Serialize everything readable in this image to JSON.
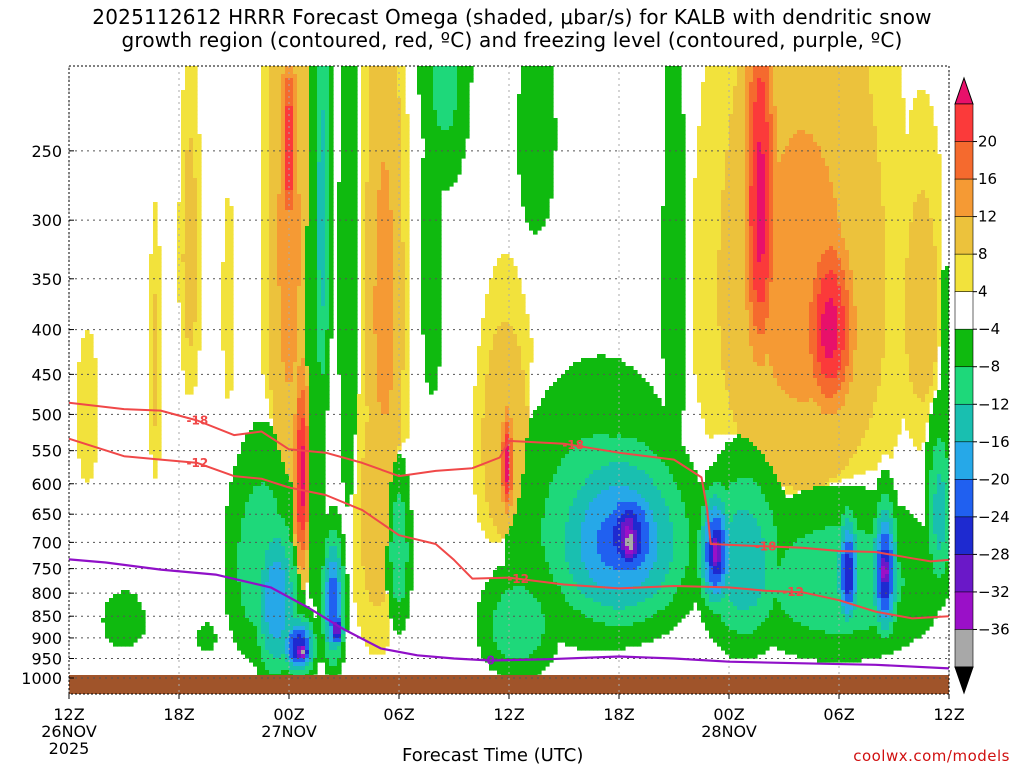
{
  "title": {
    "line1": "2025112612 HRRR Forecast Omega (shaded, μbar/s) for KALB with dendritic snow",
    "line2": "growth region (contoured, red, ºC) and freezing level (contoured, purple, ºC)"
  },
  "credit": "coolwx.com/models",
  "chart_data": {
    "type": "heatmap",
    "title": "2025112612 HRRR Forecast Omega (shaded, μbar/s) for KALB with dendritic snow growth region (contoured, red, ºC) and freezing level (contoured, purple, ºC)",
    "xlabel": "Forecast Time (UTC)",
    "ylabel": "",
    "x_ticks": [
      "12Z",
      "18Z",
      "00Z",
      "06Z",
      "12Z",
      "18Z",
      "00Z",
      "06Z",
      "12Z"
    ],
    "x_hours": [
      0,
      6,
      12,
      18,
      24,
      30,
      36,
      42,
      48
    ],
    "x_date_labels": [
      {
        "hour": 0,
        "lines": [
          "26NOV",
          "2025"
        ]
      },
      {
        "hour": 12,
        "lines": [
          "27NOV"
        ]
      },
      {
        "hour": 36,
        "lines": [
          "28NOV"
        ]
      }
    ],
    "y_ticks": [
      250,
      300,
      350,
      400,
      450,
      500,
      550,
      600,
      650,
      700,
      750,
      800,
      850,
      900,
      950,
      1000
    ],
    "y_scale": "log-pressure",
    "ylim": [
      1000,
      200
    ],
    "grid": true,
    "colorbar": {
      "labels": [
        "20",
        "16",
        "12",
        "8",
        "4",
        "−4",
        "−8",
        "−12",
        "−16",
        "−20",
        "−24",
        "−28",
        "−32",
        "−36"
      ],
      "colors": [
        "#e8106a",
        "#fb3a3a",
        "#f56a2e",
        "#f59a34",
        "#ecc23c",
        "#f2e23c",
        "#ffffff",
        "#0fba0f",
        "#1ed87a",
        "#19bfb0",
        "#26a8e8",
        "#2060f0",
        "#1e2ad0",
        "#6a18c8",
        "#9a10c8",
        "#a8a8a8",
        "#000000"
      ]
    },
    "omega_blobs": [
      {
        "t": 4.7,
        "p": 440,
        "dt": 0.35,
        "dp": 160,
        "v": 5
      },
      {
        "t": 6.6,
        "p": 330,
        "dt": 0.6,
        "dp": 140,
        "v": 6
      },
      {
        "t": 8.7,
        "p": 380,
        "dt": 0.4,
        "dp": 120,
        "v": 4
      },
      {
        "t": 1.0,
        "p": 500,
        "dt": 0.7,
        "dp": 120,
        "v": 4
      },
      {
        "t": 3.3,
        "p": 320,
        "dt": 0.4,
        "dp": 180,
        "v": -4
      },
      {
        "t": 12.0,
        "p": 320,
        "dt": 1.2,
        "dp": 300,
        "v": 10
      },
      {
        "t": 12.0,
        "p": 250,
        "dt": 0.35,
        "dp": 60,
        "v": 22
      },
      {
        "t": 12.7,
        "p": 590,
        "dt": 0.45,
        "dp": 160,
        "v": 22
      },
      {
        "t": 17.2,
        "p": 380,
        "dt": 1.1,
        "dp": 260,
        "v": 10
      },
      {
        "t": 16.8,
        "p": 650,
        "dt": 1.4,
        "dp": 280,
        "v": 6
      },
      {
        "t": 23.8,
        "p": 540,
        "dt": 1.5,
        "dp": 180,
        "v": 8
      },
      {
        "t": 23.9,
        "p": 570,
        "dt": 0.35,
        "dp": 80,
        "v": 22
      },
      {
        "t": 40.0,
        "p": 360,
        "dt": 4.8,
        "dp": 260,
        "v": 10
      },
      {
        "t": 37.7,
        "p": 290,
        "dt": 0.9,
        "dp": 150,
        "v": 22
      },
      {
        "t": 41.5,
        "p": 400,
        "dt": 1.4,
        "dp": 100,
        "v": 22
      },
      {
        "t": 39.5,
        "p": 650,
        "dt": 2.4,
        "dp": 120,
        "v": 4
      },
      {
        "t": 46.5,
        "p": 380,
        "dt": 1.4,
        "dp": 160,
        "v": 6
      },
      {
        "t": 13.4,
        "p": 480,
        "dt": 0.8,
        "dp": 420,
        "v": -8
      },
      {
        "t": 13.8,
        "p": 300,
        "dt": 0.5,
        "dp": 200,
        "v": -14
      },
      {
        "t": 15.2,
        "p": 360,
        "dt": 0.6,
        "dp": 330,
        "v": -8
      },
      {
        "t": 10.5,
        "p": 740,
        "dt": 2.0,
        "dp": 220,
        "v": -12
      },
      {
        "t": 11.3,
        "p": 820,
        "dt": 1.2,
        "dp": 180,
        "v": -20
      },
      {
        "t": 12.5,
        "p": 920,
        "dt": 0.9,
        "dp": 70,
        "v": -28
      },
      {
        "t": 12.7,
        "p": 935,
        "dt": 0.4,
        "dp": 25,
        "v": -40
      },
      {
        "t": 14.4,
        "p": 820,
        "dt": 0.6,
        "dp": 140,
        "v": -24
      },
      {
        "t": 14.6,
        "p": 880,
        "dt": 0.35,
        "dp": 40,
        "v": -34
      },
      {
        "t": 18.0,
        "p": 720,
        "dt": 0.7,
        "dp": 160,
        "v": -12
      },
      {
        "t": 19.8,
        "p": 330,
        "dt": 0.9,
        "dp": 230,
        "v": -6
      },
      {
        "t": 20.5,
        "p": 200,
        "dt": 1.5,
        "dp": 80,
        "v": -10
      },
      {
        "t": 24.5,
        "p": 870,
        "dt": 2.2,
        "dp": 130,
        "v": -12
      },
      {
        "t": 25.5,
        "p": 240,
        "dt": 1.6,
        "dp": 110,
        "v": -6
      },
      {
        "t": 29.0,
        "p": 680,
        "dt": 5.0,
        "dp": 240,
        "v": -12
      },
      {
        "t": 30.0,
        "p": 700,
        "dt": 3.8,
        "dp": 170,
        "v": -22
      },
      {
        "t": 30.5,
        "p": 690,
        "dt": 2.0,
        "dp": 110,
        "v": -28
      },
      {
        "t": 30.5,
        "p": 690,
        "dt": 0.9,
        "dp": 80,
        "v": -34
      },
      {
        "t": 30.6,
        "p": 700,
        "dt": 0.55,
        "dp": 55,
        "v": -40
      },
      {
        "t": 33.0,
        "p": 360,
        "dt": 1.0,
        "dp": 330,
        "v": -6
      },
      {
        "t": 36.8,
        "p": 740,
        "dt": 2.3,
        "dp": 180,
        "v": -16
      },
      {
        "t": 35.3,
        "p": 720,
        "dt": 0.9,
        "dp": 110,
        "v": -28
      },
      {
        "t": 35.3,
        "p": 720,
        "dt": 0.35,
        "dp": 60,
        "v": -36
      },
      {
        "t": 42.0,
        "p": 780,
        "dt": 5.5,
        "dp": 170,
        "v": -12
      },
      {
        "t": 42.5,
        "p": 760,
        "dt": 0.6,
        "dp": 110,
        "v": -28
      },
      {
        "t": 44.5,
        "p": 760,
        "dt": 0.7,
        "dp": 130,
        "v": -28
      },
      {
        "t": 44.5,
        "p": 755,
        "dt": 0.35,
        "dp": 55,
        "v": -36
      },
      {
        "t": 47.5,
        "p": 650,
        "dt": 0.8,
        "dp": 160,
        "v": -14
      },
      {
        "t": 47.8,
        "p": 460,
        "dt": 0.5,
        "dp": 200,
        "v": -6
      },
      {
        "t": 3.0,
        "p": 860,
        "dt": 1.8,
        "dp": 100,
        "v": -6
      },
      {
        "t": 7.5,
        "p": 900,
        "dt": 1.0,
        "dp": 70,
        "v": -5
      },
      {
        "t": 40.0,
        "p": 200,
        "dt": 2.0,
        "dp": 40,
        "v": -6
      }
    ],
    "dendritic_contours": [
      {
        "label": "-18",
        "label_at": [
          7,
          27.5,
          38
        ],
        "points": [
          [
            0,
            485
          ],
          [
            3,
            493
          ],
          [
            5,
            495
          ],
          [
            7,
            508
          ],
          [
            9,
            528
          ],
          [
            10.5,
            523
          ],
          [
            12,
            548
          ],
          [
            14,
            553
          ],
          [
            16,
            568
          ],
          [
            18,
            588
          ],
          [
            20,
            580
          ],
          [
            22,
            576
          ],
          [
            23.5,
            560
          ],
          [
            24,
            536
          ],
          [
            27,
            540
          ],
          [
            30,
            553
          ],
          [
            33,
            563
          ],
          [
            34.5,
            590
          ],
          [
            34.8,
            640
          ],
          [
            35,
            703
          ],
          [
            37,
            706
          ],
          [
            40,
            710
          ],
          [
            42,
            716
          ],
          [
            44,
            718
          ],
          [
            46,
            730
          ],
          [
            47,
            736
          ],
          [
            48,
            733
          ]
        ]
      },
      {
        "label": "-12",
        "label_at": [
          7,
          24.5,
          39.5
        ],
        "points": [
          [
            0,
            533
          ],
          [
            3,
            558
          ],
          [
            5,
            563
          ],
          [
            7,
            568
          ],
          [
            9,
            588
          ],
          [
            10.5,
            592
          ],
          [
            12,
            606
          ],
          [
            14,
            618
          ],
          [
            16,
            643
          ],
          [
            18,
            687
          ],
          [
            20,
            703
          ],
          [
            21,
            733
          ],
          [
            22,
            770
          ],
          [
            24,
            768
          ],
          [
            27,
            782
          ],
          [
            30,
            790
          ],
          [
            33,
            785
          ],
          [
            36,
            788
          ],
          [
            38,
            795
          ],
          [
            40,
            798
          ],
          [
            42,
            815
          ],
          [
            44,
            840
          ],
          [
            46,
            855
          ],
          [
            48,
            850
          ]
        ]
      }
    ],
    "freezing_contour": {
      "label": "0",
      "label_at": 23,
      "points": [
        [
          0,
          732
        ],
        [
          2,
          738
        ],
        [
          5,
          752
        ],
        [
          8,
          762
        ],
        [
          11,
          788
        ],
        [
          13,
          830
        ],
        [
          15,
          880
        ],
        [
          17,
          925
        ],
        [
          19,
          942
        ],
        [
          21,
          950
        ],
        [
          23,
          955
        ],
        [
          26,
          952
        ],
        [
          30,
          945
        ],
        [
          33,
          950
        ],
        [
          36,
          958
        ],
        [
          40,
          962
        ],
        [
          44,
          966
        ],
        [
          48,
          975
        ]
      ]
    }
  }
}
